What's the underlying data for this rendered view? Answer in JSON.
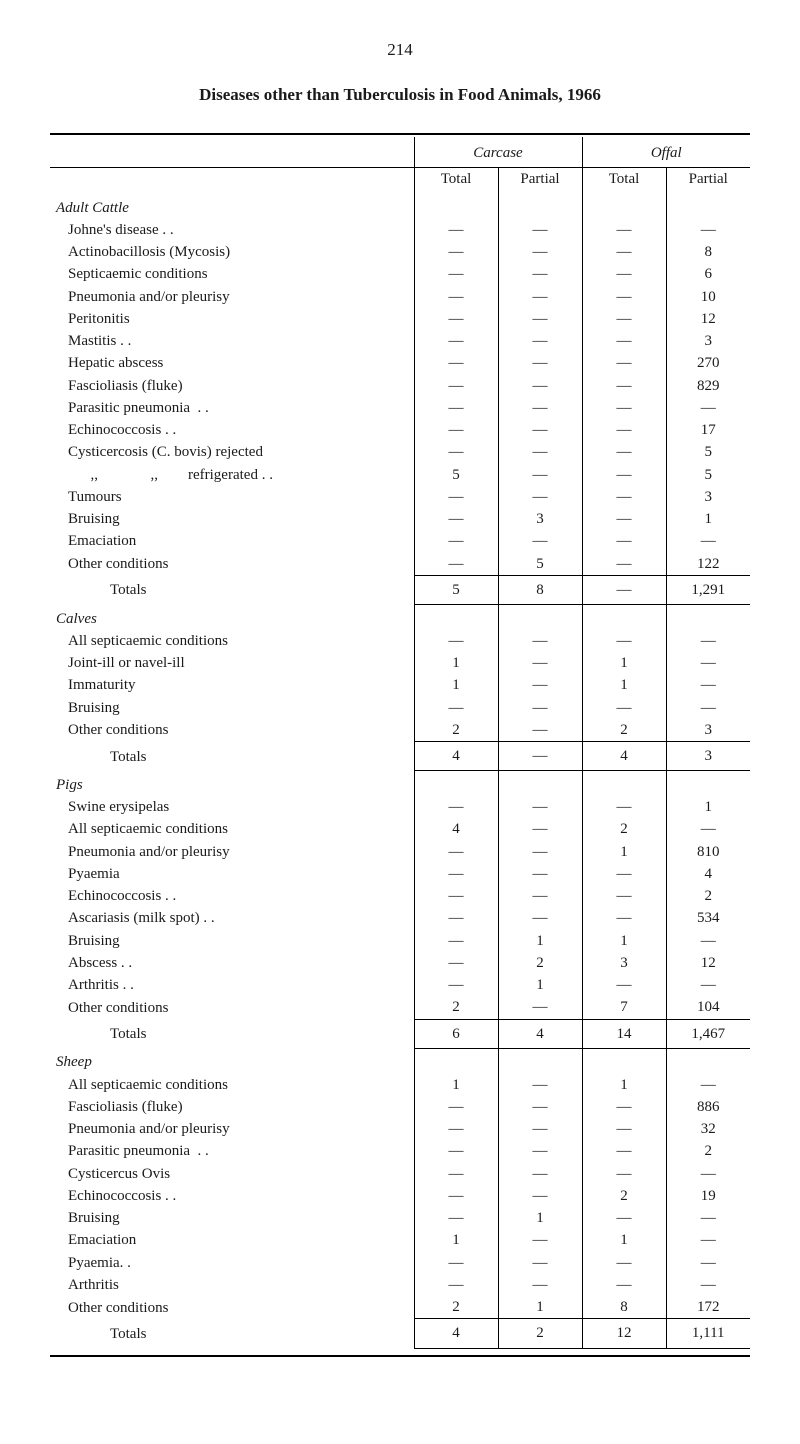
{
  "page_number": "214",
  "title": "Diseases other than Tuberculosis in Food Animals, 1966",
  "header": {
    "group1": "Carcase",
    "group2": "Offal",
    "col1": "Total",
    "col2": "Partial",
    "col3": "Total",
    "col4": "Partial"
  },
  "sections": [
    {
      "name": "Adult Cattle",
      "rows": [
        {
          "label": "Johne's disease . .",
          "c1": "—",
          "c2": "—",
          "c3": "—",
          "c4": "—"
        },
        {
          "label": "Actinobacillosis (Mycosis)",
          "c1": "—",
          "c2": "—",
          "c3": "—",
          "c4": "8"
        },
        {
          "label": "Septicaemic conditions",
          "c1": "—",
          "c2": "—",
          "c3": "—",
          "c4": "6"
        },
        {
          "label": "Pneumonia and/or pleurisy",
          "c1": "—",
          "c2": "—",
          "c3": "—",
          "c4": "10"
        },
        {
          "label": "Peritonitis",
          "c1": "—",
          "c2": "—",
          "c3": "—",
          "c4": "12"
        },
        {
          "label": "Mastitis . .",
          "c1": "—",
          "c2": "—",
          "c3": "—",
          "c4": "3"
        },
        {
          "label": "Hepatic abscess",
          "c1": "—",
          "c2": "—",
          "c3": "—",
          "c4": "270"
        },
        {
          "label": "Fascioliasis (fluke)",
          "c1": "—",
          "c2": "—",
          "c3": "—",
          "c4": "829"
        },
        {
          "label": "Parasitic pneumonia  . .",
          "c1": "—",
          "c2": "—",
          "c3": "—",
          "c4": "—"
        },
        {
          "label": "Echinococcosis . .",
          "c1": "—",
          "c2": "—",
          "c3": "—",
          "c4": "17"
        },
        {
          "label": "Cysticercosis (C. bovis) rejected",
          "c1": "—",
          "c2": "—",
          "c3": "—",
          "c4": "5"
        },
        {
          "label": "      ,,              ,,        refrigerated . .",
          "c1": "5",
          "c2": "—",
          "c3": "—",
          "c4": "5"
        },
        {
          "label": "Tumours",
          "c1": "—",
          "c2": "—",
          "c3": "—",
          "c4": "3"
        },
        {
          "label": "Bruising",
          "c1": "—",
          "c2": "3",
          "c3": "—",
          "c4": "1"
        },
        {
          "label": "Emaciation",
          "c1": "—",
          "c2": "—",
          "c3": "—",
          "c4": "—"
        },
        {
          "label": "Other conditions",
          "c1": "—",
          "c2": "5",
          "c3": "—",
          "c4": "122"
        }
      ],
      "totals": {
        "label": "Totals",
        "c1": "5",
        "c2": "8",
        "c3": "—",
        "c4": "1,291"
      }
    },
    {
      "name": "Calves",
      "rows": [
        {
          "label": "All septicaemic conditions",
          "c1": "—",
          "c2": "—",
          "c3": "—",
          "c4": "—"
        },
        {
          "label": "Joint-ill or navel-ill",
          "c1": "1",
          "c2": "—",
          "c3": "1",
          "c4": "—"
        },
        {
          "label": "Immaturity",
          "c1": "1",
          "c2": "—",
          "c3": "1",
          "c4": "—"
        },
        {
          "label": "Bruising",
          "c1": "—",
          "c2": "—",
          "c3": "—",
          "c4": "—"
        },
        {
          "label": "Other conditions",
          "c1": "2",
          "c2": "—",
          "c3": "2",
          "c4": "3"
        }
      ],
      "totals": {
        "label": "Totals",
        "c1": "4",
        "c2": "—",
        "c3": "4",
        "c4": "3"
      }
    },
    {
      "name": "Pigs",
      "rows": [
        {
          "label": "Swine erysipelas",
          "c1": "—",
          "c2": "—",
          "c3": "—",
          "c4": "1"
        },
        {
          "label": "All septicaemic conditions",
          "c1": "4",
          "c2": "—",
          "c3": "2",
          "c4": "—"
        },
        {
          "label": "Pneumonia and/or pleurisy",
          "c1": "—",
          "c2": "—",
          "c3": "1",
          "c4": "810"
        },
        {
          "label": "Pyaemia",
          "c1": "—",
          "c2": "—",
          "c3": "—",
          "c4": "4"
        },
        {
          "label": "Echinococcosis . .",
          "c1": "—",
          "c2": "—",
          "c3": "—",
          "c4": "2"
        },
        {
          "label": "Ascariasis (milk spot) . .",
          "c1": "—",
          "c2": "—",
          "c3": "—",
          "c4": "534"
        },
        {
          "label": "Bruising",
          "c1": "—",
          "c2": "1",
          "c3": "1",
          "c4": "—"
        },
        {
          "label": "Abscess . .",
          "c1": "—",
          "c2": "2",
          "c3": "3",
          "c4": "12"
        },
        {
          "label": "Arthritis . .",
          "c1": "—",
          "c2": "1",
          "c3": "—",
          "c4": "—"
        },
        {
          "label": "Other conditions",
          "c1": "2",
          "c2": "—",
          "c3": "7",
          "c4": "104"
        }
      ],
      "totals": {
        "label": "Totals",
        "c1": "6",
        "c2": "4",
        "c3": "14",
        "c4": "1,467"
      }
    },
    {
      "name": "Sheep",
      "rows": [
        {
          "label": "All septicaemic conditions",
          "c1": "1",
          "c2": "—",
          "c3": "1",
          "c4": "—"
        },
        {
          "label": "Fascioliasis (fluke)",
          "c1": "—",
          "c2": "—",
          "c3": "—",
          "c4": "886"
        },
        {
          "label": "Pneumonia and/or pleurisy",
          "c1": "—",
          "c2": "—",
          "c3": "—",
          "c4": "32"
        },
        {
          "label": "Parasitic pneumonia  . .",
          "c1": "—",
          "c2": "—",
          "c3": "—",
          "c4": "2"
        },
        {
          "label": "Cysticercus Ovis",
          "c1": "—",
          "c2": "—",
          "c3": "—",
          "c4": "—"
        },
        {
          "label": "Echinococcosis . .",
          "c1": "—",
          "c2": "—",
          "c3": "2",
          "c4": "19"
        },
        {
          "label": "Bruising",
          "c1": "—",
          "c2": "1",
          "c3": "—",
          "c4": "—"
        },
        {
          "label": "Emaciation",
          "c1": "1",
          "c2": "—",
          "c3": "1",
          "c4": "—"
        },
        {
          "label": "Pyaemia. .",
          "c1": "—",
          "c2": "—",
          "c3": "—",
          "c4": "—"
        },
        {
          "label": "Arthritis",
          "c1": "—",
          "c2": "—",
          "c3": "—",
          "c4": "—"
        },
        {
          "label": "Other conditions",
          "c1": "2",
          "c2": "1",
          "c3": "8",
          "c4": "172"
        }
      ],
      "totals": {
        "label": "Totals",
        "c1": "4",
        "c2": "2",
        "c3": "12",
        "c4": "1,111"
      }
    }
  ]
}
